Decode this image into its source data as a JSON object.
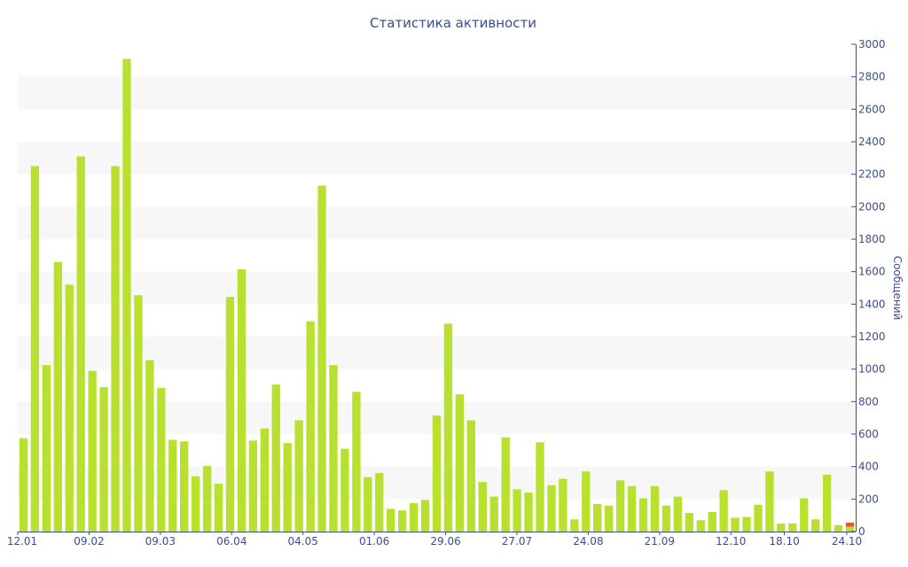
{
  "chart_data": {
    "type": "bar",
    "title": "Статистика активности",
    "ylabel": "Сообщений",
    "xlabel": "",
    "ylim": [
      0,
      3000
    ],
    "y_ticks": [
      0,
      200,
      400,
      600,
      800,
      1000,
      1200,
      1400,
      1600,
      1800,
      2000,
      2200,
      2400,
      2600,
      2800,
      3000
    ],
    "y_axis_side": "right",
    "grid": "alternating horizontal bands",
    "x_tick_labels": [
      {
        "label": "12.01",
        "index": 0
      },
      {
        "label": "09.02",
        "index": 4
      },
      {
        "label": "09.03",
        "index": 8
      },
      {
        "label": "06.04",
        "index": 12
      },
      {
        "label": "04.05",
        "index": 16
      },
      {
        "label": "01.06",
        "index": 20
      },
      {
        "label": "29.06",
        "index": 24
      },
      {
        "label": "27.07",
        "index": 28
      },
      {
        "label": "24.08",
        "index": 32
      },
      {
        "label": "21.09",
        "index": 36
      },
      {
        "label": "12.10",
        "index": 40
      },
      {
        "label": "18.10",
        "index": 43
      },
      {
        "label": "24.10",
        "index": 47
      }
    ],
    "series": [
      {
        "color": "#b8e12f",
        "values": [
          575,
          2250,
          1025,
          1660,
          1520,
          2310,
          990,
          890,
          2250,
          2910,
          1455,
          1055,
          885,
          565,
          555,
          340,
          405,
          295,
          1445,
          1615,
          560,
          635,
          905,
          545,
          685,
          1295,
          2130,
          1025,
          510,
          860,
          335,
          360,
          140,
          130,
          175,
          195,
          715,
          1280,
          845,
          685,
          305,
          215,
          580,
          260,
          240,
          550,
          285,
          325,
          75,
          370,
          170,
          160,
          315,
          280,
          205,
          280,
          160,
          215,
          115,
          70,
          120,
          255,
          85,
          90,
          165,
          370,
          50,
          50,
          205,
          75,
          350,
          40,
          30
        ]
      },
      {
        "color": "#e05a3a",
        "values": [
          0,
          0,
          0,
          0,
          0,
          0,
          0,
          0,
          0,
          0,
          0,
          0,
          0,
          0,
          0,
          0,
          0,
          0,
          0,
          0,
          0,
          0,
          0,
          0,
          0,
          0,
          0,
          0,
          0,
          0,
          0,
          0,
          0,
          0,
          0,
          0,
          0,
          0,
          0,
          0,
          0,
          0,
          0,
          0,
          0,
          0,
          0,
          0,
          0,
          0,
          0,
          0,
          0,
          0,
          0,
          0,
          0,
          0,
          0,
          0,
          0,
          0,
          0,
          0,
          0,
          0,
          0,
          0,
          0,
          0,
          0,
          0,
          25
        ]
      }
    ]
  }
}
